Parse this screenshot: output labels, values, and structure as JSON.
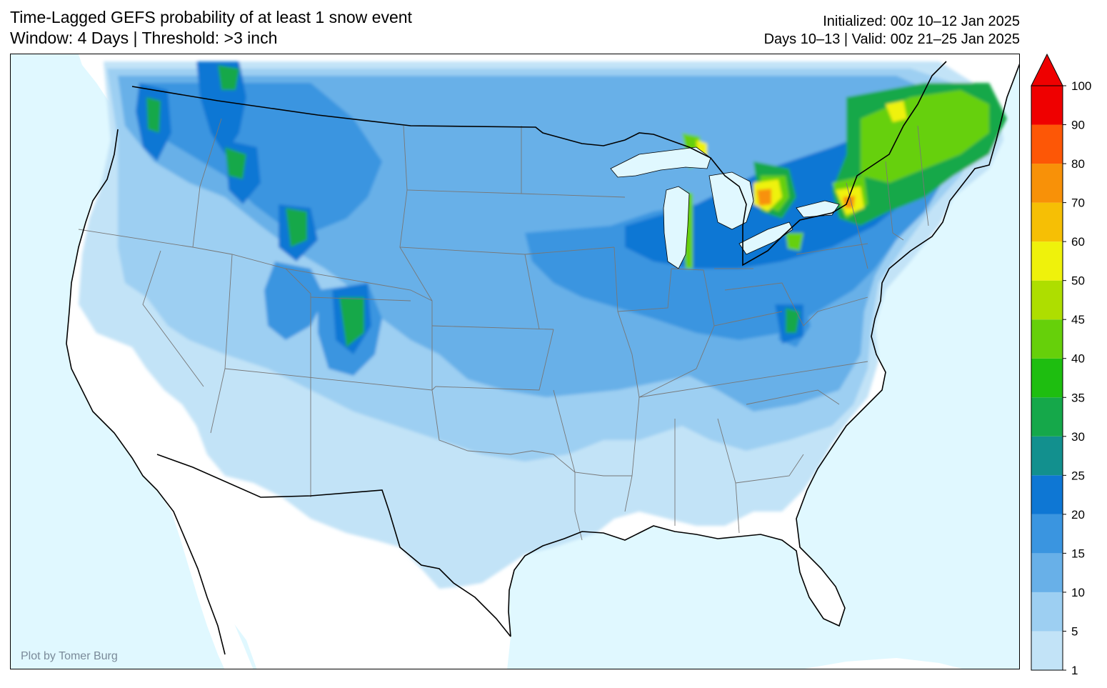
{
  "header": {
    "title_line1": "Time-Lagged GEFS probability of at least 1 snow event",
    "title_line2": "Window: 4 Days | Threshold: >3 inch",
    "initialized": "Initialized: 00z 10–12 Jan 2025",
    "valid": "Days 10–13 | Valid: 00z 21–25 Jan 2025"
  },
  "credit": "Plot by Tomer Burg",
  "colors": {
    "ocean": "#e0f8ff",
    "land": "#ffffff",
    "borders_national": "#000000",
    "borders_state": "#777777"
  },
  "colorbar": {
    "levels": [
      "1",
      "5",
      "10",
      "15",
      "20",
      "25",
      "30",
      "35",
      "40",
      "45",
      "50",
      "60",
      "70",
      "80",
      "90",
      "100"
    ],
    "colors": [
      "#c2e3f7",
      "#9dcff2",
      "#68b0e8",
      "#3a95e0",
      "#0e77d4",
      "#12908e",
      "#15a84a",
      "#1ebe10",
      "#66d00a",
      "#aede00",
      "#eff20b",
      "#f6bf05",
      "#f89108",
      "#fd5706",
      "#ef0000"
    ],
    "extend": "max"
  }
}
